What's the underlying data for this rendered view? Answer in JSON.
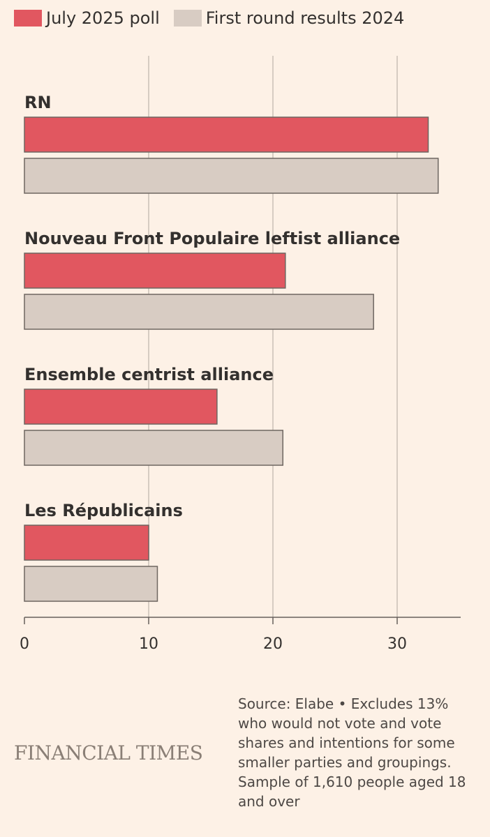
{
  "legend": [
    {
      "label": "July 2025 poll",
      "color": "#e15760"
    },
    {
      "label": "First round results 2024",
      "color": "#d8ccc3"
    }
  ],
  "chart_data": {
    "type": "bar",
    "orientation": "horizontal",
    "categories": [
      "RN",
      "Nouveau Front Populaire leftist alliance",
      "Ensemble centrist alliance",
      "Les Républicains"
    ],
    "series": [
      {
        "name": "July 2025 poll",
        "color": "#e15760",
        "values": [
          32.5,
          21.0,
          15.5,
          10.0
        ]
      },
      {
        "name": "First round results 2024",
        "color": "#d8ccc3",
        "values": [
          33.3,
          28.1,
          20.8,
          10.7
        ]
      }
    ],
    "xlim": [
      0,
      35
    ],
    "xticks": [
      0,
      10,
      20,
      30
    ],
    "grid": true,
    "legend_position": "top-left"
  },
  "footer": {
    "brand": "FINANCIAL TIMES",
    "source": "Source: Elabe • Excludes 13% who would not vote and vote shares and intentions for some smaller parties and groupings. Sample of 1,610 people aged 18 and over"
  }
}
